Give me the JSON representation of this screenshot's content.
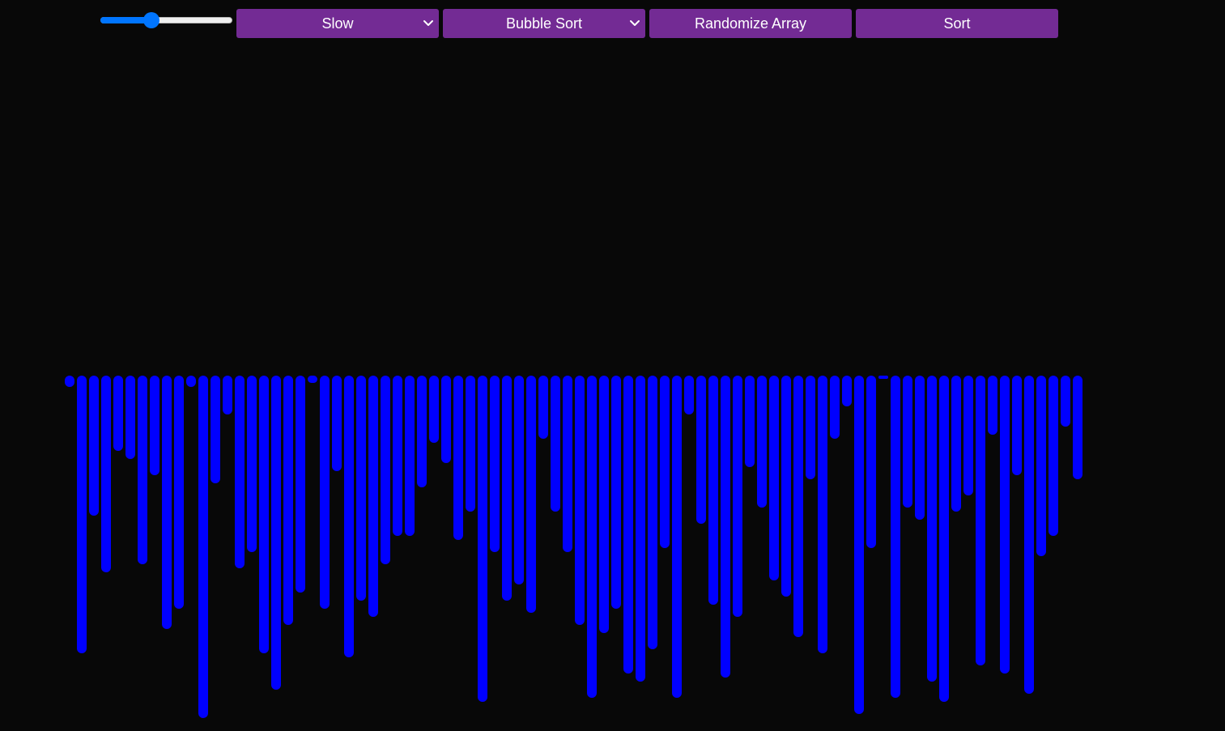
{
  "toolbar": {
    "speed_slider": {
      "value": 0.37
    },
    "speed_select": {
      "selected": "Slow"
    },
    "algorithm_select": {
      "selected": "Bubble Sort"
    },
    "randomize_label": "Randomize Array",
    "sort_label": "Sort"
  },
  "colors": {
    "background": "#080808",
    "button": "#732b94",
    "button_text": "#ffffff",
    "bar": "#0000ff",
    "slider_accent": "#0075ff"
  },
  "chart_data": {
    "type": "bar",
    "values": [
      14,
      343,
      173,
      243,
      93,
      103,
      233,
      123,
      313,
      288,
      14,
      423,
      133,
      48,
      238,
      218,
      343,
      388,
      308,
      268,
      9,
      288,
      118,
      348,
      278,
      298,
      233,
      198,
      198,
      138,
      83,
      108,
      203,
      168,
      403,
      218,
      278,
      258,
      293,
      78,
      168,
      218,
      308,
      398,
      318,
      288,
      368,
      378,
      338,
      213,
      398,
      48,
      183,
      283,
      373,
      298,
      113,
      163,
      253,
      273,
      323,
      128,
      343,
      78,
      38,
      418,
      213,
      3,
      398,
      163,
      178,
      378,
      403,
      168,
      148,
      358,
      73,
      368,
      123,
      393,
      223,
      198,
      63,
      128
    ]
  }
}
